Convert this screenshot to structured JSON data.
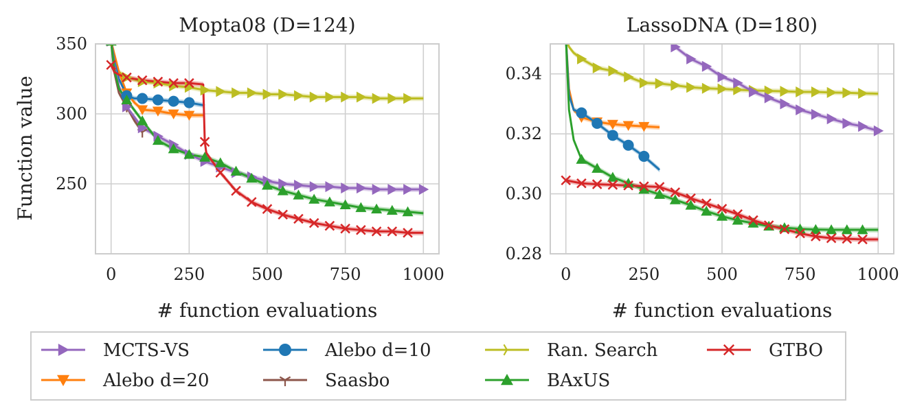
{
  "colors": {
    "mcts_vs": "#9467bd",
    "alebo20": "#ff7f0e",
    "alebo10": "#1f77b4",
    "saasbo": "#8c564b",
    "random": "#bcbd22",
    "baxus": "#2ca02c",
    "gtbo": "#d62728"
  },
  "chart_data": [
    {
      "type": "line",
      "title": "Mopta08 (D=124)",
      "xlabel": "# function evaluations",
      "ylabel": "Function value",
      "xlim": [
        -50,
        1050
      ],
      "ylim": [
        200,
        350
      ],
      "xticks": [
        0,
        250,
        500,
        750,
        1000
      ],
      "yticks": [
        250,
        300,
        350
      ],
      "grid": true,
      "series": [
        {
          "name": "Ran. Search",
          "key": "random",
          "marker": "tri_right",
          "x": [
            0,
            10,
            25,
            50,
            100,
            150,
            200,
            250,
            300,
            350,
            400,
            450,
            500,
            550,
            600,
            650,
            700,
            750,
            800,
            850,
            900,
            950,
            1000
          ],
          "y": [
            352,
            334,
            330,
            326,
            323,
            322,
            320,
            319,
            317,
            316,
            315,
            315,
            314,
            314,
            313,
            312,
            312,
            312,
            312,
            311,
            311,
            311,
            311
          ]
        },
        {
          "name": "Alebo d=20",
          "key": "alebo20",
          "marker": "tri_down",
          "x": [
            0,
            10,
            25,
            50,
            75,
            100,
            150,
            200,
            250,
            300
          ],
          "y": [
            352,
            343,
            330,
            315,
            308,
            303,
            302,
            300,
            299,
            299
          ]
        },
        {
          "name": "Alebo d=10",
          "key": "alebo10",
          "marker": "circle",
          "x": [
            0,
            10,
            25,
            50,
            75,
            100,
            150,
            200,
            250,
            300
          ],
          "y": [
            352,
            338,
            325,
            313,
            311,
            311,
            310,
            309,
            308,
            306
          ]
        },
        {
          "name": "Saasbo",
          "key": "saasbo",
          "marker": "tri_down_thin",
          "x": [
            0,
            10,
            25,
            50,
            75,
            100
          ],
          "y": [
            352,
            330,
            315,
            305,
            295,
            287
          ]
        },
        {
          "name": "MCTS-VS",
          "key": "mcts_vs",
          "marker": "tri_right",
          "x": [
            0,
            10,
            25,
            50,
            100,
            150,
            200,
            250,
            300,
            350,
            400,
            450,
            500,
            550,
            600,
            650,
            700,
            750,
            800,
            850,
            900,
            950,
            1000
          ],
          "y": [
            352,
            335,
            320,
            305,
            290,
            284,
            278,
            271,
            266,
            262,
            258,
            255,
            252,
            250,
            249,
            248,
            248,
            247,
            247,
            246,
            246,
            246,
            246
          ]
        },
        {
          "name": "BAxUS",
          "key": "baxus",
          "marker": "triangle_up",
          "x": [
            0,
            10,
            25,
            50,
            100,
            150,
            200,
            250,
            300,
            350,
            400,
            450,
            500,
            550,
            600,
            650,
            700,
            750,
            800,
            850,
            900,
            950,
            1000
          ],
          "y": [
            352,
            332,
            318,
            310,
            295,
            281,
            275,
            271,
            269,
            265,
            259,
            254,
            249,
            245,
            242,
            239,
            237,
            235,
            233,
            232,
            231,
            230,
            229
          ]
        },
        {
          "name": "GTBO",
          "key": "gtbo",
          "marker": "x",
          "x": [
            0,
            10,
            25,
            50,
            100,
            150,
            200,
            250,
            295,
            300,
            305,
            350,
            400,
            450,
            500,
            550,
            600,
            650,
            700,
            750,
            800,
            850,
            900,
            950,
            1000
          ],
          "y": [
            335,
            330,
            328,
            326,
            324,
            323,
            322,
            322,
            321,
            280,
            272,
            258,
            245,
            237,
            232,
            228,
            225,
            222,
            220,
            218,
            217,
            216,
            216,
            215,
            215
          ]
        }
      ],
      "marker_x": {
        "random": [
          0,
          50,
          100,
          150,
          200,
          250,
          300,
          350,
          400,
          450,
          500,
          550,
          600,
          650,
          700,
          750,
          800,
          850,
          900,
          950
        ],
        "alebo20": [
          0,
          50,
          100,
          150,
          200,
          250
        ],
        "alebo10": [
          50,
          100,
          150,
          200,
          250
        ],
        "saasbo": [
          50,
          100
        ],
        "mcts_vs": [
          0,
          50,
          100,
          150,
          200,
          250,
          300,
          350,
          400,
          450,
          500,
          550,
          600,
          650,
          700,
          750,
          800,
          850,
          900,
          950,
          1000
        ],
        "baxus": [
          0,
          50,
          100,
          150,
          200,
          250,
          300,
          350,
          400,
          450,
          500,
          550,
          600,
          650,
          700,
          750,
          800,
          850,
          900,
          950
        ],
        "gtbo": [
          0,
          50,
          100,
          150,
          200,
          250,
          300,
          350,
          400,
          450,
          500,
          550,
          600,
          650,
          700,
          750,
          800,
          850,
          900,
          950
        ]
      }
    },
    {
      "type": "line",
      "title": "LassoDNA (D=180)",
      "xlabel": "# function evaluations",
      "ylabel": "",
      "xlim": [
        -50,
        1050
      ],
      "ylim": [
        0.28,
        0.35
      ],
      "xticks": [
        0,
        250,
        500,
        750,
        1000
      ],
      "yticks": [
        0.28,
        0.3,
        0.32,
        0.34
      ],
      "yticklabels": [
        "0.28",
        "0.30",
        "0.32",
        "0.34"
      ],
      "grid": true,
      "series": [
        {
          "name": "Ran. Search",
          "key": "random",
          "marker": "tri_right",
          "x": [
            0,
            10,
            25,
            50,
            100,
            150,
            200,
            250,
            300,
            350,
            400,
            450,
            500,
            550,
            600,
            650,
            700,
            750,
            800,
            850,
            900,
            950,
            1000
          ],
          "y": [
            0.352,
            0.349,
            0.347,
            0.345,
            0.342,
            0.341,
            0.339,
            0.337,
            0.3368,
            0.3362,
            0.3355,
            0.3352,
            0.335,
            0.3347,
            0.3345,
            0.3343,
            0.3342,
            0.334,
            0.334,
            0.3338,
            0.3337,
            0.3335,
            0.3334
          ]
        },
        {
          "name": "MCTS-VS",
          "key": "mcts_vs",
          "marker": "tri_right",
          "x": [
            330,
            350,
            400,
            450,
            500,
            550,
            600,
            650,
            700,
            750,
            800,
            850,
            900,
            950,
            1000
          ],
          "y": [
            0.352,
            0.349,
            0.345,
            0.3425,
            0.339,
            0.337,
            0.334,
            0.332,
            0.33,
            0.328,
            0.3265,
            0.325,
            0.3235,
            0.3225,
            0.321
          ]
        },
        {
          "name": "Alebo d=20",
          "key": "alebo20",
          "marker": "tri_down",
          "x": [
            0,
            10,
            25,
            50,
            100,
            150,
            200,
            250,
            300
          ],
          "y": [
            0.352,
            0.335,
            0.328,
            0.3255,
            0.324,
            0.3232,
            0.3228,
            0.3225,
            0.3222
          ]
        },
        {
          "name": "Alebo d=10",
          "key": "alebo10",
          "marker": "circle",
          "x": [
            0,
            10,
            25,
            50,
            100,
            150,
            200,
            250,
            300
          ],
          "y": [
            0.352,
            0.333,
            0.328,
            0.327,
            0.3235,
            0.3195,
            0.3162,
            0.3125,
            0.308
          ]
        },
        {
          "name": "BAxUS",
          "key": "baxus",
          "marker": "triangle_up",
          "x": [
            0,
            10,
            25,
            50,
            100,
            150,
            200,
            250,
            300,
            350,
            400,
            450,
            500,
            550,
            600,
            650,
            700,
            750,
            800,
            850,
            900,
            950,
            1000
          ],
          "y": [
            0.352,
            0.328,
            0.318,
            0.3115,
            0.3085,
            0.3055,
            0.3035,
            0.3015,
            0.2998,
            0.298,
            0.2962,
            0.2942,
            0.2925,
            0.2912,
            0.2902,
            0.2892,
            0.2887,
            0.2883,
            0.2881,
            0.288,
            0.288,
            0.288,
            0.288
          ]
        },
        {
          "name": "GTBO",
          "key": "gtbo",
          "marker": "x",
          "x": [
            0,
            50,
            100,
            150,
            200,
            250,
            300,
            350,
            400,
            450,
            500,
            550,
            600,
            650,
            700,
            750,
            800,
            850,
            900,
            950,
            1000
          ],
          "y": [
            0.3045,
            0.3035,
            0.3032,
            0.303,
            0.3028,
            0.3025,
            0.3023,
            0.3005,
            0.2985,
            0.2968,
            0.295,
            0.2932,
            0.2912,
            0.2895,
            0.2882,
            0.2868,
            0.2858,
            0.2852,
            0.285,
            0.2848,
            0.2848
          ]
        }
      ],
      "marker_x": {
        "random": [
          0,
          50,
          100,
          150,
          200,
          250,
          300,
          350,
          400,
          450,
          500,
          550,
          600,
          650,
          700,
          750,
          800,
          850,
          900,
          950
        ],
        "mcts_vs": [
          350,
          400,
          450,
          500,
          550,
          600,
          650,
          700,
          750,
          800,
          850,
          900,
          950,
          1000
        ],
        "alebo20": [
          50,
          100,
          150,
          200,
          250
        ],
        "alebo10": [
          50,
          100,
          150,
          200,
          250
        ],
        "baxus": [
          50,
          100,
          150,
          200,
          250,
          300,
          350,
          400,
          450,
          500,
          550,
          600,
          650,
          700,
          750,
          800,
          850,
          900,
          950
        ],
        "gtbo": [
          0,
          50,
          100,
          150,
          200,
          250,
          300,
          350,
          400,
          450,
          500,
          550,
          600,
          650,
          700,
          750,
          800,
          850,
          900,
          950
        ]
      }
    }
  ],
  "legend": {
    "items": [
      {
        "label": "MCTS-VS",
        "key": "mcts_vs",
        "marker": "tri_right"
      },
      {
        "label": "Alebo d=10",
        "key": "alebo10",
        "marker": "circle"
      },
      {
        "label": "Ran. Search",
        "key": "random",
        "marker": "tri_right_thin"
      },
      {
        "label": "GTBO",
        "key": "gtbo",
        "marker": "x"
      },
      {
        "label": "Alebo d=20",
        "key": "alebo20",
        "marker": "tri_down"
      },
      {
        "label": "Saasbo",
        "key": "saasbo",
        "marker": "tri_down_thin"
      },
      {
        "label": "BAxUS",
        "key": "baxus",
        "marker": "triangle_up"
      }
    ]
  }
}
